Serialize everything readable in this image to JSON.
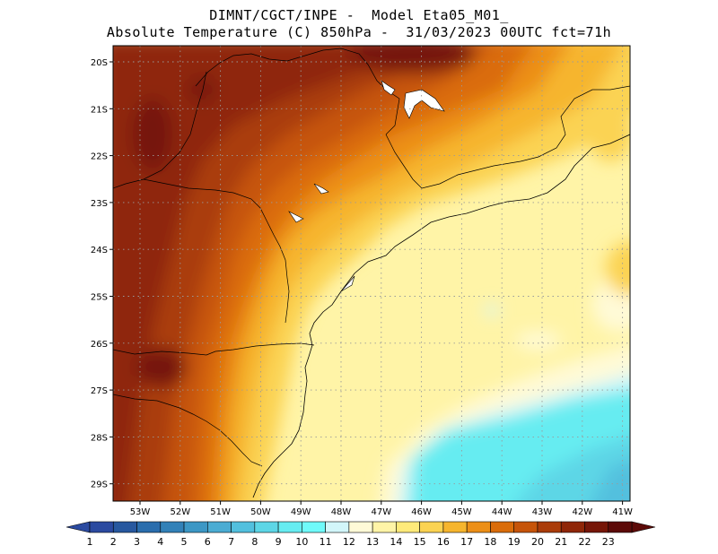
{
  "title_line1": "DIMNT/CGCT/INPE -  Model Eta05_M01_",
  "title_line2": "Absolute Temperature (C) 850hPa -  31/03/2023 00UTC fct=71h",
  "map": {
    "lat_labels": [
      "20S",
      "21S",
      "22S",
      "23S",
      "24S",
      "25S",
      "26S",
      "27S",
      "28S",
      "29S"
    ],
    "lon_labels": [
      "53W",
      "52W",
      "51W",
      "50W",
      "49W",
      "48W",
      "47W",
      "46W",
      "45W",
      "44W",
      "43W",
      "42W",
      "41W"
    ]
  },
  "colorbar": {
    "labels": [
      "1",
      "2",
      "3",
      "4",
      "5",
      "6",
      "7",
      "8",
      "9",
      "10",
      "11",
      "12",
      "13",
      "14",
      "15",
      "16",
      "17",
      "18",
      "19",
      "20",
      "21",
      "22",
      "23"
    ],
    "colors": [
      "#2b4aa0",
      "#27589f",
      "#2a6dad",
      "#3281b8",
      "#3c97c5",
      "#4bacd3",
      "#52c0de",
      "#5dd6e6",
      "#66ecf1",
      "#6ffafa",
      "#d2f6fa",
      "#fffad7",
      "#fff4a7",
      "#feea7a",
      "#fbd352",
      "#f6b52d",
      "#ec8f17",
      "#da6c0a",
      "#c65409",
      "#aa3c09",
      "#8f2608",
      "#761608",
      "#5c0a08"
    ]
  }
}
